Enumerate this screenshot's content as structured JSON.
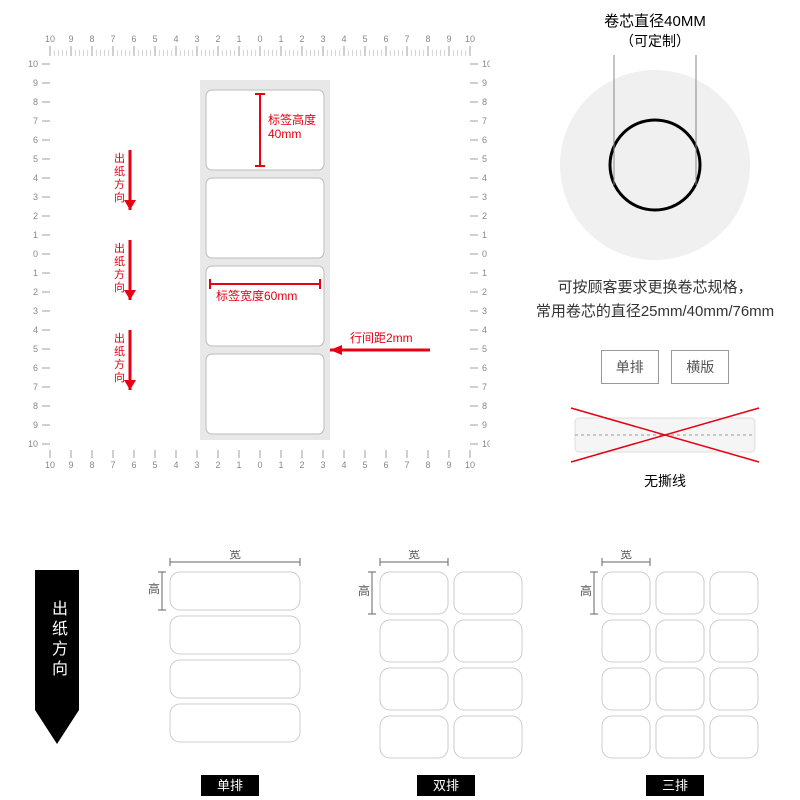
{
  "ruler": {
    "numbers": [
      10,
      9,
      8,
      7,
      6,
      5,
      4,
      3,
      2,
      1,
      0,
      1,
      2,
      3,
      4,
      5,
      6,
      7,
      8,
      9,
      10
    ],
    "color": "#888888"
  },
  "main_diagram": {
    "strip_bg": "#e8e8e8",
    "label_fill": "#ffffff",
    "label_stroke": "#bbbbbb",
    "label_height_text": "标签高度\n40mm",
    "label_width_text": "标签宽度60mm",
    "gap_text": "行间距2mm",
    "feed_text": "出纸方向",
    "red": "#e60012"
  },
  "core": {
    "title": "卷芯直径40MM",
    "subtitle": "（可定制）",
    "outer_color": "#f0f0f0",
    "ring_color": "#000000",
    "desc1": "可按顾客要求更换卷芯规格，",
    "desc2": "常用卷芯的直径25mm/40mm/76mm"
  },
  "options": {
    "opt1": "单排",
    "opt2": "横版",
    "no_tear": "无撕线",
    "cross_color": "#e60012"
  },
  "bottom": {
    "arrow_text": "出纸方向",
    "width_label": "宽",
    "height_label": "高",
    "layouts": [
      {
        "name": "单排",
        "cols": 1
      },
      {
        "name": "双排",
        "cols": 2
      },
      {
        "name": "三排",
        "cols": 3
      }
    ],
    "label_fill": "#ffffff",
    "label_stroke": "#cccccc"
  }
}
